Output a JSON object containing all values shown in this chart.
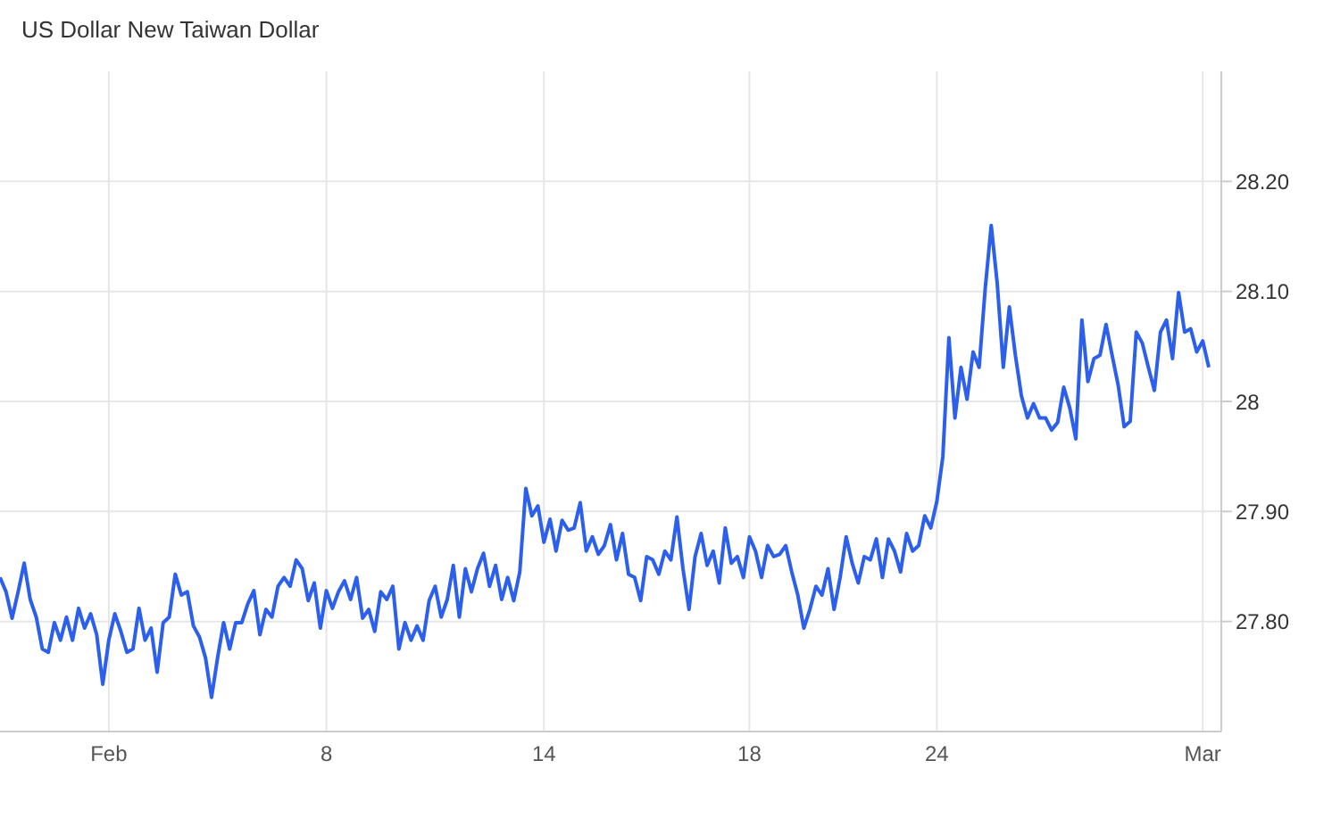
{
  "chart_data": {
    "type": "line",
    "title": "US Dollar New Taiwan Dollar",
    "grid": true,
    "categories": [
      null,
      null,
      null,
      null,
      null,
      null,
      null,
      null,
      null,
      null,
      null,
      null,
      null,
      null,
      null,
      null,
      null,
      null,
      "Feb",
      null,
      null,
      null,
      null,
      null,
      null,
      null,
      null,
      null,
      null,
      null,
      null,
      null,
      null,
      null,
      null,
      null,
      null,
      null,
      null,
      null,
      null,
      null,
      null,
      null,
      null,
      null,
      null,
      null,
      null,
      null,
      null,
      null,
      null,
      null,
      "8",
      null,
      null,
      null,
      null,
      null,
      null,
      null,
      null,
      null,
      null,
      null,
      null,
      null,
      null,
      null,
      null,
      null,
      null,
      null,
      null,
      null,
      null,
      null,
      null,
      null,
      null,
      null,
      null,
      null,
      null,
      null,
      null,
      null,
      null,
      null,
      "14",
      null,
      null,
      null,
      null,
      null,
      null,
      null,
      null,
      null,
      null,
      null,
      null,
      null,
      null,
      null,
      null,
      null,
      null,
      null,
      null,
      null,
      null,
      null,
      null,
      null,
      null,
      null,
      null,
      null,
      null,
      null,
      null,
      null,
      "18",
      null,
      null,
      null,
      null,
      null,
      null,
      null,
      null,
      null,
      null,
      null,
      null,
      null,
      null,
      null,
      null,
      null,
      null,
      null,
      null,
      null,
      null,
      null,
      null,
      null,
      null,
      null,
      null,
      null,
      null,
      "24",
      null,
      null,
      null,
      null,
      null,
      null,
      null,
      null,
      null,
      null,
      null,
      null,
      null,
      null,
      null,
      null,
      null,
      null,
      null,
      null,
      null,
      null,
      null,
      null,
      null,
      null,
      null,
      null,
      null,
      null,
      null,
      null,
      null,
      null,
      null,
      null,
      null,
      null,
      null,
      null,
      null,
      null,
      null,
      "Mar",
      null
    ],
    "ylim": [
      27.7,
      28.3
    ],
    "yticks": [
      {
        "value": 27.8,
        "label": "27.80"
      },
      {
        "value": 27.9,
        "label": "27.90"
      },
      28,
      {
        "value": 28.1,
        "label": "28.10"
      },
      {
        "value": 28.2,
        "label": "28.20"
      }
    ],
    "series": [
      {
        "color": "#2b5fec",
        "values": [
          27.84,
          27.827,
          27.803,
          27.827,
          27.853,
          27.82,
          27.804,
          27.775,
          27.772,
          27.799,
          27.783,
          27.804,
          27.783,
          27.812,
          27.794,
          27.807,
          27.788,
          27.743,
          27.783,
          27.807,
          27.791,
          27.772,
          27.775,
          27.812,
          27.783,
          27.794,
          27.754,
          27.799,
          27.804,
          27.843,
          27.824,
          27.827,
          27.796,
          27.786,
          27.767,
          27.731,
          27.767,
          27.799,
          27.775,
          27.799,
          27.799,
          27.816,
          27.828,
          27.788,
          27.811,
          27.804,
          27.832,
          27.84,
          27.832,
          27.856,
          27.848,
          27.819,
          27.835,
          27.794,
          27.828,
          27.812,
          27.827,
          27.837,
          27.82,
          27.84,
          27.803,
          27.811,
          27.791,
          27.827,
          27.82,
          27.832,
          27.775,
          27.799,
          27.783,
          27.796,
          27.783,
          27.819,
          27.832,
          27.804,
          27.82,
          27.851,
          27.804,
          27.848,
          27.827,
          27.848,
          27.862,
          27.832,
          27.851,
          27.82,
          27.84,
          27.819,
          27.845,
          27.921,
          27.896,
          27.905,
          27.872,
          27.893,
          27.864,
          27.892,
          27.883,
          27.885,
          27.908,
          27.864,
          27.877,
          27.861,
          27.869,
          27.888,
          27.856,
          27.88,
          27.843,
          27.84,
          27.819,
          27.859,
          27.856,
          27.843,
          27.864,
          27.856,
          27.895,
          27.848,
          27.811,
          27.859,
          27.88,
          27.851,
          27.864,
          27.835,
          27.885,
          27.853,
          27.859,
          27.84,
          27.877,
          27.864,
          27.84,
          27.869,
          27.859,
          27.861,
          27.869,
          27.845,
          27.824,
          27.794,
          27.811,
          27.832,
          27.824,
          27.848,
          27.811,
          27.84,
          27.877,
          27.853,
          27.835,
          27.859,
          27.856,
          27.875,
          27.84,
          27.875,
          27.864,
          27.845,
          27.88,
          27.864,
          27.869,
          27.896,
          27.885,
          27.909,
          27.95,
          28.058,
          27.985,
          28.031,
          28.002,
          28.045,
          28.031,
          28.102,
          28.16,
          28.107,
          28.031,
          28.086,
          28.042,
          28.005,
          27.985,
          27.998,
          27.985,
          27.985,
          27.974,
          27.981,
          28.013,
          27.994,
          27.966,
          28.074,
          28.018,
          28.039,
          28.042,
          28.07,
          28.042,
          28.015,
          27.977,
          27.982,
          28.063,
          28.053,
          28.031,
          28.01,
          28.063,
          28.074,
          28.039,
          28.099,
          28.063,
          28.066,
          28.045,
          28.055,
          28.031
        ]
      }
    ]
  }
}
